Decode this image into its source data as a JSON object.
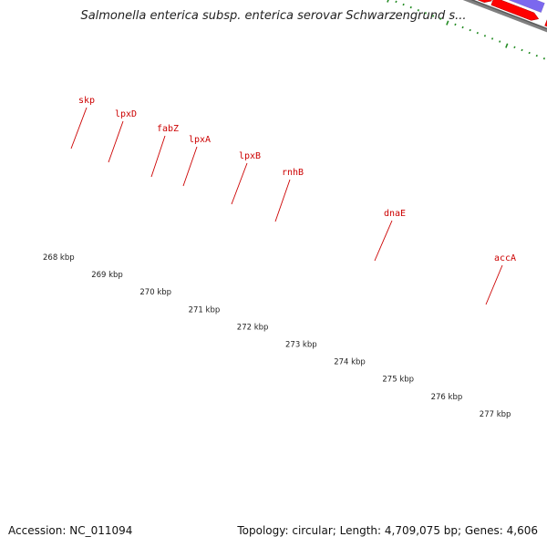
{
  "title": "Salmonella enterica subsp. enterica serovar Schwarzengrund s...",
  "footer": {
    "accession": "Accession: NC_011094",
    "topology": "Topology: circular; Length: 4,709,075 bp; Genes: 4,606"
  },
  "colors": {
    "background": "#ffffff",
    "backbone": "#808080",
    "cds_forward": "#ff0000",
    "gene_olive": "#6b8e23",
    "gene_purple": "#7b68ee",
    "gene_magenta": "#ff1493",
    "gene_gray": "#cccccc",
    "tick_green": "#228b22",
    "label_red": "#cc0000"
  },
  "scale_labels": [
    "268 kbp",
    "269 kbp",
    "270 kbp",
    "271 kbp",
    "272 kbp",
    "273 kbp",
    "274 kbp",
    "275 kbp",
    "276 kbp",
    "277 kbp"
  ],
  "genes": [
    {
      "name": "skp"
    },
    {
      "name": "lpxD"
    },
    {
      "name": "fabZ"
    },
    {
      "name": "lpxA"
    },
    {
      "name": "lpxB"
    },
    {
      "name": "rnhB"
    },
    {
      "name": "dnaE"
    },
    {
      "name": "accA"
    }
  ]
}
